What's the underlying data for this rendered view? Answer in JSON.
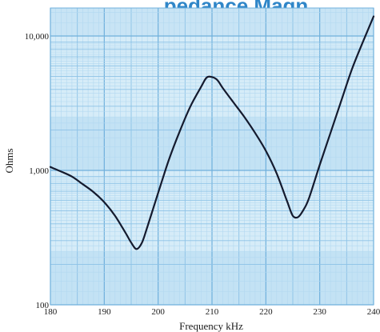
{
  "chart_data": {
    "type": "line",
    "title": "…pedance Magn…",
    "xlabel": "Frequency kHz",
    "ylabel": "Ohms",
    "xlim": [
      180,
      240
    ],
    "ylim": [
      100,
      15000
    ],
    "yscale": "log",
    "grid": true,
    "x_ticks": [
      "180",
      "190",
      "200",
      "210",
      "220",
      "230",
      "240"
    ],
    "y_ticks": [
      {
        "value": 100,
        "label": "100"
      },
      {
        "value": 1000,
        "label": "1,000"
      },
      {
        "value": 10000,
        "label": "10,000"
      }
    ],
    "series": [
      {
        "x": [
          180,
          182,
          184,
          186,
          188,
          190,
          192,
          194,
          195,
          196,
          197,
          198,
          200,
          202,
          204,
          206,
          208,
          209,
          210,
          211,
          212,
          214,
          216,
          218,
          220,
          222,
          224,
          225,
          226,
          227,
          228,
          230,
          232,
          234,
          236,
          238,
          240
        ],
        "y": [
          1060,
          980,
          900,
          790,
          690,
          580,
          460,
          340,
          290,
          260,
          290,
          380,
          680,
          1200,
          1950,
          3000,
          4200,
          4900,
          4950,
          4700,
          4100,
          3200,
          2500,
          1900,
          1400,
          950,
          580,
          460,
          450,
          510,
          620,
          1100,
          1900,
          3300,
          5700,
          9000,
          14000
        ],
        "color": "#141a2e"
      }
    ]
  }
}
